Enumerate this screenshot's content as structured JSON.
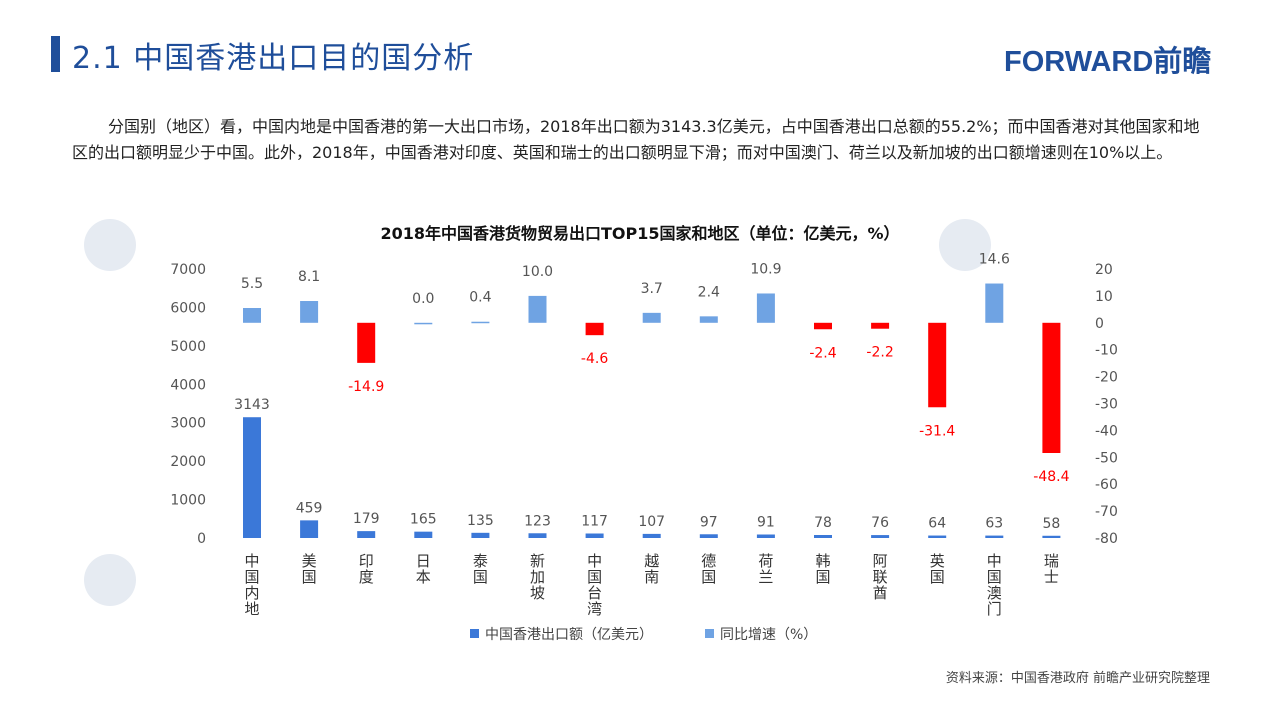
{
  "header": {
    "title": "2.1  中国香港出口目的国分析",
    "logo": "FORWARD前瞻"
  },
  "body": {
    "paragraph": "分国别（地区）看，中国内地是中国香港的第一大出口市场，2018年出口额为3143.3亿美元，占中国香港出口总额的55.2%；而中国香港对其他国家和地区的出口额明显少于中国。此外，2018年，中国香港对印度、英国和瑞士的出口额明显下滑；而对中国澳门、荷兰以及新加坡的出口额增速则在10%以上。"
  },
  "footer": {
    "source": "资料来源：中国香港政府  前瞻产业研究院整理"
  },
  "colors": {
    "primary": "#1f4e9a",
    "export_bar": "#3b78d8",
    "growth_pos": "#6fa3e3",
    "growth_neg": "#ff0000"
  },
  "chart_data": {
    "type": "bar",
    "title": "2018年中国香港货物贸易出口TOP15国家和地区（单位：亿美元，%）",
    "categories": [
      "中国内地",
      "美国",
      "印度",
      "日本",
      "泰国",
      "新加坡",
      "中国台湾",
      "越南",
      "德国",
      "荷兰",
      "韩国",
      "阿联酋",
      "英国",
      "中国澳门",
      "瑞士"
    ],
    "series": [
      {
        "name": "中国香港出口额（亿美元）",
        "axis": "left",
        "values": [
          3143,
          459,
          179,
          165,
          135,
          123,
          117,
          107,
          97,
          91,
          78,
          76,
          64,
          63,
          58
        ],
        "labels": [
          "3143",
          "459",
          "179",
          "165",
          "135",
          "123",
          "117",
          "107",
          "97",
          "91",
          "78",
          "76",
          "64",
          "63",
          "58"
        ]
      },
      {
        "name": "同比增速（%）",
        "axis": "right",
        "values": [
          5.5,
          8.1,
          -14.9,
          0.0,
          0.4,
          10.0,
          -4.6,
          3.7,
          2.4,
          10.9,
          -2.4,
          -2.2,
          -31.4,
          14.6,
          -48.4
        ],
        "labels": [
          "5.5",
          "8.1",
          "-14.9",
          "0.0",
          "0.4",
          "10.0",
          "-4.6",
          "3.7",
          "2.4",
          "10.9",
          "-2.4",
          "-2.2",
          "-31.4",
          "14.6",
          "-48.4"
        ]
      }
    ],
    "y_left": {
      "ticks": [
        "7000",
        "6000",
        "5000",
        "4000",
        "3000",
        "2000",
        "1000",
        "0"
      ],
      "lim": [
        0,
        7000
      ]
    },
    "y_right": {
      "ticks": [
        "20",
        "10",
        "0",
        "-10",
        "-20",
        "-30",
        "-40",
        "-50",
        "-60",
        "-70",
        "-80"
      ],
      "lim": [
        -80,
        20
      ]
    },
    "legend_position": "bottom"
  }
}
